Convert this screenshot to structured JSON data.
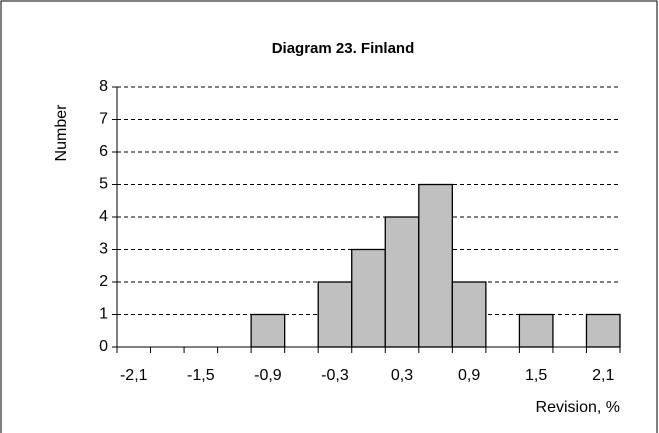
{
  "chart_data": {
    "type": "bar",
    "title": "Diagram 23.  Finland",
    "x_label": "Revision, %",
    "y_label": "Number",
    "categories": [
      "-2,1",
      null,
      "-1,5",
      null,
      "-0,9",
      null,
      "-0,3",
      null,
      "0,3",
      null,
      "0,9",
      null,
      "1,5",
      null,
      "2,1"
    ],
    "values": [
      0,
      0,
      0,
      0,
      1,
      0,
      2,
      3,
      4,
      5,
      2,
      0,
      1,
      0,
      1
    ],
    "color": "#c0c0c0",
    "ylim": [
      0,
      8
    ],
    "yticks": [
      0,
      1,
      2,
      3,
      4,
      5,
      6,
      7,
      8
    ],
    "grid": true
  }
}
